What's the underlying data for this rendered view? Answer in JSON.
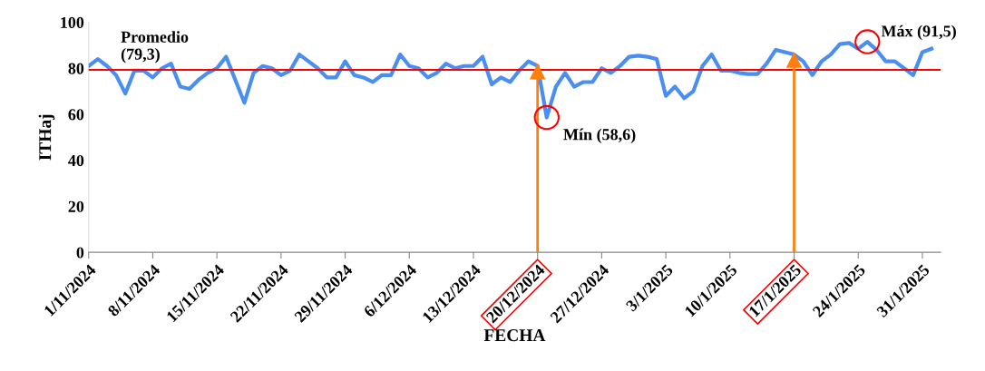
{
  "chart_data": {
    "type": "line",
    "xlabel": "FECHA",
    "ylabel": "ITHaj",
    "x": [
      "2024-11-01",
      "2024-11-02",
      "2024-11-03",
      "2024-11-04",
      "2024-11-05",
      "2024-11-06",
      "2024-11-07",
      "2024-11-08",
      "2024-11-09",
      "2024-11-10",
      "2024-11-11",
      "2024-11-12",
      "2024-11-13",
      "2024-11-14",
      "2024-11-15",
      "2024-11-16",
      "2024-11-17",
      "2024-11-18",
      "2024-11-19",
      "2024-11-20",
      "2024-11-21",
      "2024-11-22",
      "2024-11-23",
      "2024-11-24",
      "2024-11-25",
      "2024-11-26",
      "2024-11-27",
      "2024-11-28",
      "2024-11-29",
      "2024-11-30",
      "2024-12-01",
      "2024-12-02",
      "2024-12-03",
      "2024-12-04",
      "2024-12-05",
      "2024-12-06",
      "2024-12-07",
      "2024-12-08",
      "2024-12-09",
      "2024-12-10",
      "2024-12-11",
      "2024-12-12",
      "2024-12-13",
      "2024-12-14",
      "2024-12-15",
      "2024-12-16",
      "2024-12-17",
      "2024-12-18",
      "2024-12-19",
      "2024-12-20",
      "2024-12-21",
      "2024-12-22",
      "2024-12-23",
      "2024-12-24",
      "2024-12-25",
      "2024-12-26",
      "2024-12-27",
      "2024-12-28",
      "2024-12-29",
      "2024-12-30",
      "2024-12-31",
      "2025-01-01",
      "2025-01-02",
      "2025-01-03",
      "2025-01-04",
      "2025-01-05",
      "2025-01-06",
      "2025-01-07",
      "2025-01-08",
      "2025-01-09",
      "2025-01-10",
      "2025-01-11",
      "2025-01-12",
      "2025-01-13",
      "2025-01-14",
      "2025-01-15",
      "2025-01-16",
      "2025-01-17",
      "2025-01-18",
      "2025-01-19",
      "2025-01-20",
      "2025-01-21",
      "2025-01-22",
      "2025-01-23",
      "2025-01-24",
      "2025-01-25",
      "2025-01-26",
      "2025-01-27",
      "2025-01-28",
      "2025-01-29",
      "2025-01-30",
      "2025-01-31",
      "2025-02-01"
    ],
    "series": [
      {
        "color": "#4a8ef0",
        "values": [
          81,
          84,
          81,
          77,
          69,
          79,
          79,
          76,
          80,
          82,
          72,
          71,
          75,
          78,
          80,
          85,
          75,
          65,
          78,
          81,
          80,
          77,
          79,
          86,
          83,
          80,
          76,
          76,
          83,
          77,
          76,
          74,
          77,
          77,
          86,
          81,
          80,
          76,
          78,
          82,
          80,
          81,
          81,
          85,
          73,
          76,
          74,
          79,
          83,
          81,
          58.6,
          72,
          78,
          72,
          74,
          74,
          80,
          78,
          81,
          85,
          85.5,
          85,
          84,
          68,
          72,
          67,
          70,
          81,
          86,
          79,
          79,
          78,
          77.5,
          77.5,
          82,
          88,
          87,
          86,
          83,
          77,
          83,
          86,
          90.5,
          91,
          88.5,
          91.5,
          88,
          83,
          83,
          80,
          77,
          87,
          88.5
        ]
      }
    ],
    "xlim": [
      "2024-11-01",
      "2025-02-02"
    ],
    "xticks": [
      {
        "value": "2024-11-01",
        "label": "1/11/2024"
      },
      {
        "value": "2024-11-08",
        "label": "8/11/2024"
      },
      {
        "value": "2024-11-15",
        "label": "15/11/2024"
      },
      {
        "value": "2024-11-22",
        "label": "22/11/2024"
      },
      {
        "value": "2024-11-29",
        "label": "29/11/2024"
      },
      {
        "value": "2024-12-06",
        "label": "6/12/2024"
      },
      {
        "value": "2024-12-13",
        "label": "13/12/2024"
      },
      {
        "value": "2024-12-20",
        "label": "20/12/2024"
      },
      {
        "value": "2024-12-27",
        "label": "27/12/2024"
      },
      {
        "value": "2025-01-03",
        "label": "3/1/2025"
      },
      {
        "value": "2025-01-10",
        "label": "10/1/2025"
      },
      {
        "value": "2025-01-17",
        "label": "17/1/2025"
      },
      {
        "value": "2025-01-24",
        "label": "24/1/2025"
      },
      {
        "value": "2025-01-31",
        "label": "31/1/2025"
      }
    ],
    "ylim": [
      0,
      100
    ],
    "yticks": [
      0,
      20,
      40,
      60,
      80,
      100
    ],
    "ref_lines": [
      {
        "axis": "y",
        "value": 79.3,
        "label": "Promedio\n(79,3)",
        "color": "#ff0000"
      },
      {
        "axis": "x",
        "value": "2024-12-20",
        "color": "#ff7f0e"
      },
      {
        "axis": "x",
        "value": "2025-01-17",
        "color": "#ff7f0e"
      }
    ],
    "annotations": [
      {
        "text": "Mín (58,6)",
        "x": "2024-12-21",
        "y": 58.6
      },
      {
        "text": "Máx (91,5)",
        "x": "2025-01-25",
        "y": 91.5
      }
    ],
    "grid": false,
    "legend": false,
    "marker": "none",
    "line_style": "solid"
  }
}
